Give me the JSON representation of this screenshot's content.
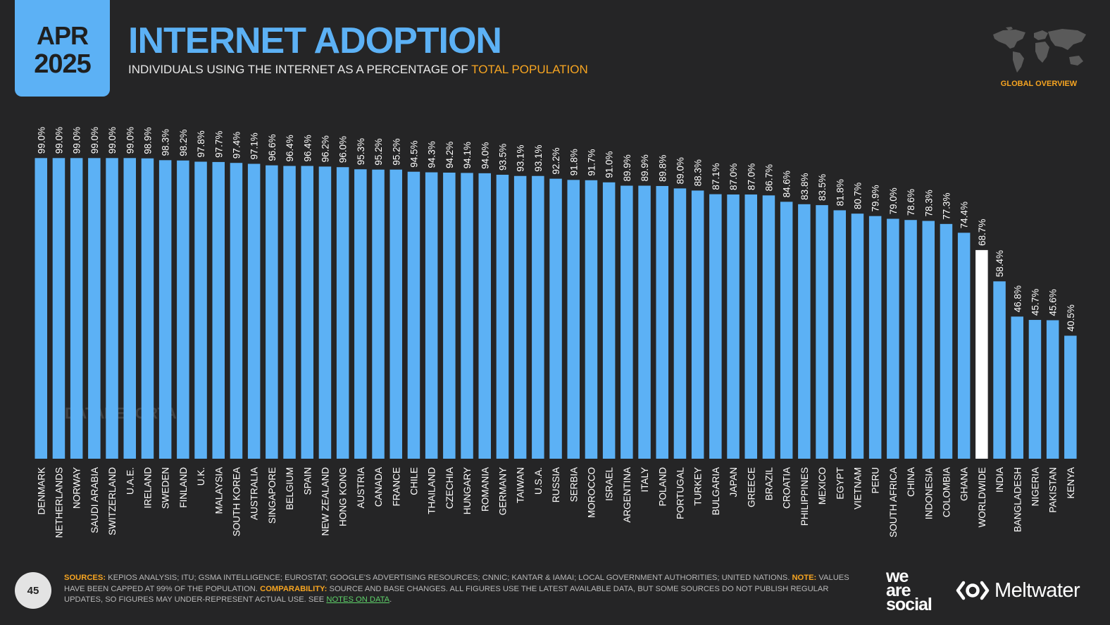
{
  "header": {
    "month": "APR",
    "year": "2025",
    "title": "INTERNET ADOPTION",
    "subtitle_main": "INDIVIDUALS USING THE INTERNET AS A PERCENTAGE OF ",
    "subtitle_highlight": "TOTAL POPULATION",
    "section": "GLOBAL OVERVIEW"
  },
  "watermark": "DATAREPORTAL",
  "footer": {
    "page_number": "45",
    "sources_label": "SOURCES:",
    "sources_text": " KEPIOS ANALYSIS; ITU; GSMA INTELLIGENCE; EUROSTAT; GOOGLE'S ADVERTISING RESOURCES; CNNIC; KANTAR & IAMAI; LOCAL GOVERNMENT AUTHORITIES; UNITED NATIONS. ",
    "note_label": "NOTE:",
    "note_text": " VALUES HAVE BEEN CAPPED AT 99% OF THE POPULATION. ",
    "comparability_label": "COMPARABILITY:",
    "comparability_text": " SOURCE AND BASE CHANGES. ALL FIGURES USE THE LATEST AVAILABLE DATA, BUT SOME SOURCES DO NOT PUBLISH REGULAR UPDATES, SO FIGURES MAY UNDER-REPRESENT ACTUAL USE. SEE ",
    "notes_link": "NOTES ON DATA",
    "end": "."
  },
  "logos": {
    "we_are_social": [
      "we",
      "are",
      "social"
    ],
    "meltwater": "Meltwater"
  },
  "colors": {
    "bar": "#5cb1f5",
    "highlight_bar": "#ffffff",
    "accent": "#f7a521",
    "background": "#252526"
  },
  "chart_data": {
    "type": "bar",
    "value_suffix": "%",
    "ylim": [
      0,
      100
    ],
    "highlight": "WORLDWIDE",
    "categories": [
      "DENMARK",
      "NETHERLANDS",
      "NORWAY",
      "SAUDI ARABIA",
      "SWITZERLAND",
      "U.A.E.",
      "IRELAND",
      "SWEDEN",
      "FINLAND",
      "U.K.",
      "MALAYSIA",
      "SOUTH KOREA",
      "AUSTRALIA",
      "SINGAPORE",
      "BELGIUM",
      "SPAIN",
      "NEW ZEALAND",
      "HONG KONG",
      "AUSTRIA",
      "CANADA",
      "FRANCE",
      "CHILE",
      "THAILAND",
      "CZECHIA",
      "HUNGARY",
      "ROMANIA",
      "GERMANY",
      "TAIWAN",
      "U.S.A.",
      "RUSSIA",
      "SERBIA",
      "MOROCCO",
      "ISRAEL",
      "ARGENTINA",
      "ITALY",
      "POLAND",
      "PORTUGAL",
      "TURKEY",
      "BULGARIA",
      "JAPAN",
      "GREECE",
      "BRAZIL",
      "CROATIA",
      "PHILIPPINES",
      "MEXICO",
      "EGYPT",
      "VIETNAM",
      "PERU",
      "SOUTH AFRICA",
      "CHINA",
      "INDONESIA",
      "COLOMBIA",
      "GHANA",
      "WORLDWIDE",
      "INDIA",
      "BANGLADESH",
      "NIGERIA",
      "PAKISTAN",
      "KENYA"
    ],
    "values": [
      99.0,
      99.0,
      99.0,
      99.0,
      99.0,
      99.0,
      98.9,
      98.3,
      98.2,
      97.8,
      97.7,
      97.4,
      97.1,
      96.6,
      96.4,
      96.4,
      96.2,
      96.0,
      95.3,
      95.2,
      95.2,
      94.5,
      94.3,
      94.2,
      94.1,
      94.0,
      93.5,
      93.1,
      93.1,
      92.2,
      91.8,
      91.7,
      91.0,
      89.9,
      89.9,
      89.8,
      89.0,
      88.3,
      87.1,
      87.0,
      87.0,
      86.7,
      84.6,
      83.8,
      83.5,
      81.8,
      80.7,
      79.9,
      79.0,
      78.6,
      78.3,
      77.3,
      74.4,
      68.7,
      58.4,
      46.8,
      45.7,
      45.6,
      40.5
    ]
  }
}
